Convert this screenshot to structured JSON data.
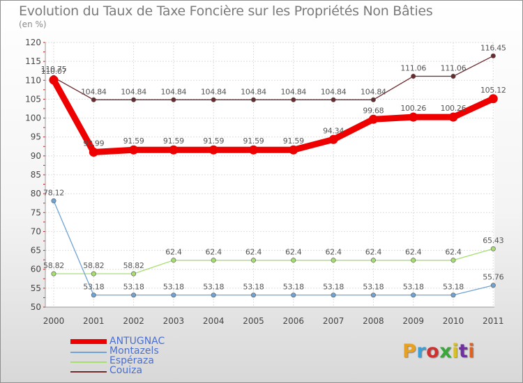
{
  "title": "Evolution du Taux de Taxe Foncière sur les Propriétés Non Bâties",
  "subtitle": "(en %)",
  "chart_data": {
    "type": "line",
    "categories": [
      "2000",
      "2001",
      "2002",
      "2003",
      "2004",
      "2005",
      "2006",
      "2007",
      "2008",
      "2009",
      "2010",
      "2011"
    ],
    "ylim": [
      50,
      120
    ],
    "yticks": [
      50,
      55,
      60,
      65,
      70,
      75,
      80,
      85,
      90,
      95,
      100,
      105,
      110,
      115,
      120
    ],
    "series": [
      {
        "name": "Couiza",
        "color": "#6b2a2e",
        "values": [
          110.75,
          104.84,
          104.84,
          104.84,
          104.84,
          104.84,
          104.84,
          104.84,
          104.84,
          111.06,
          111.06,
          116.45
        ],
        "labels": [
          "110.75",
          "104.84",
          "104.84",
          "104.84",
          "104.84",
          "104.84",
          "104.84",
          "104.84",
          "104.84",
          "111.06",
          "111.06",
          "116.45"
        ]
      },
      {
        "name": "Espéraza",
        "color": "#a6df6e",
        "values": [
          58.82,
          58.82,
          58.82,
          62.4,
          62.4,
          62.4,
          62.4,
          62.4,
          62.4,
          62.4,
          62.4,
          65.43
        ],
        "labels": [
          "58.82",
          "58.82",
          "58.82",
          "62.4",
          "62.4",
          "62.4",
          "62.4",
          "62.4",
          "62.4",
          "62.4",
          "62.4",
          "65.43"
        ]
      },
      {
        "name": "Montazels",
        "color": "#6fa3d3",
        "values": [
          78.12,
          53.18,
          53.18,
          53.18,
          53.18,
          53.18,
          53.18,
          53.18,
          53.18,
          53.18,
          53.18,
          55.76
        ],
        "labels": [
          "78.12",
          "53.18",
          "53.18",
          "53.18",
          "53.18",
          "53.18",
          "53.18",
          "53.18",
          "53.18",
          "53.18",
          "53.18",
          "55.76"
        ]
      },
      {
        "name": "ANTUGNAC",
        "color": "#ee0000",
        "values": [
          110.07,
          90.99,
          91.59,
          91.59,
          91.59,
          91.59,
          91.59,
          94.34,
          99.68,
          100.26,
          100.26,
          105.12
        ],
        "labels": [
          "110.07",
          "90.99",
          "91.59",
          "91.59",
          "91.59",
          "91.59",
          "91.59",
          "94.34",
          "99.68",
          "100.26",
          "100.26",
          "105.12"
        ]
      }
    ]
  },
  "legend": [
    {
      "name": "ANTUGNAC",
      "color": "#ee0000"
    },
    {
      "name": "Montazels",
      "color": "#6fa3d3"
    },
    {
      "name": "Espéraza",
      "color": "#a6df6e"
    },
    {
      "name": "Couiza",
      "color": "#6b2a2e"
    }
  ],
  "logo": {
    "text": "Proxiti",
    "colors": [
      "#e8a020",
      "#3aa0d8",
      "#d03030",
      "#38a838",
      "#d8c020",
      "#7030a0",
      "#e06020"
    ]
  }
}
